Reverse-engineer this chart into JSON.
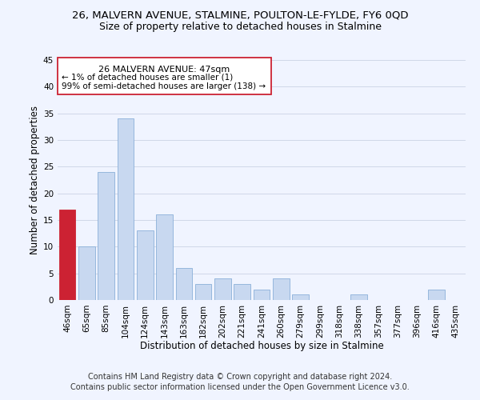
{
  "title": "26, MALVERN AVENUE, STALMINE, POULTON-LE-FYLDE, FY6 0QD",
  "subtitle": "Size of property relative to detached houses in Stalmine",
  "xlabel": "Distribution of detached houses by size in Stalmine",
  "ylabel": "Number of detached properties",
  "bar_color": "#c8d8f0",
  "bar_edge_color": "#8ab0d8",
  "highlight_color": "#cc2233",
  "categories": [
    "46sqm",
    "65sqm",
    "85sqm",
    "104sqm",
    "124sqm",
    "143sqm",
    "163sqm",
    "182sqm",
    "202sqm",
    "221sqm",
    "241sqm",
    "260sqm",
    "279sqm",
    "299sqm",
    "318sqm",
    "338sqm",
    "357sqm",
    "377sqm",
    "396sqm",
    "416sqm",
    "435sqm"
  ],
  "values": [
    17,
    10,
    24,
    34,
    13,
    16,
    6,
    3,
    4,
    3,
    2,
    4,
    1,
    0,
    0,
    1,
    0,
    0,
    0,
    2,
    0
  ],
  "ylim": [
    0,
    45
  ],
  "yticks": [
    0,
    5,
    10,
    15,
    20,
    25,
    30,
    35,
    40,
    45
  ],
  "highlight_bar_index": 0,
  "annotation_title": "26 MALVERN AVENUE: 47sqm",
  "annotation_line1": "← 1% of detached houses are smaller (1)",
  "annotation_line2": "99% of semi-detached houses are larger (138) →",
  "footer_line1": "Contains HM Land Registry data © Crown copyright and database right 2024.",
  "footer_line2": "Contains public sector information licensed under the Open Government Licence v3.0.",
  "background_color": "#f0f4ff",
  "grid_color": "#d0d8e8",
  "title_fontsize": 9.5,
  "subtitle_fontsize": 9,
  "axis_label_fontsize": 8.5,
  "tick_fontsize": 7.5,
  "footer_fontsize": 7,
  "ann_fontsize_title": 8,
  "ann_fontsize_text": 7.5
}
